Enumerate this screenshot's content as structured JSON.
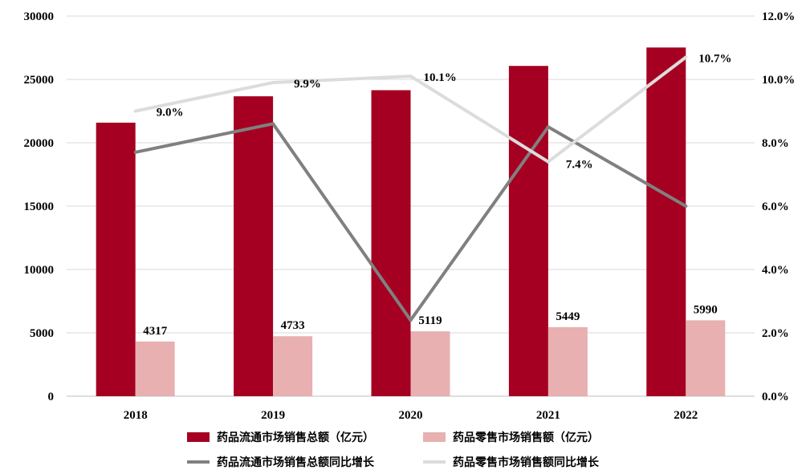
{
  "chart_data": {
    "type": "bar",
    "categories": [
      "2018",
      "2019",
      "2020",
      "2021",
      "2022"
    ],
    "bar_series": [
      {
        "name": "药品流通市场销售总额（亿元）",
        "values": [
          21586,
          23667,
          24149,
          26064,
          27516
        ],
        "color": "#a50021",
        "labels": [
          "",
          "",
          "",
          "",
          ""
        ]
      },
      {
        "name": "药品零售市场销售额（亿元）",
        "values": [
          4317,
          4733,
          5119,
          5449,
          5990
        ],
        "color": "#e8b0b0",
        "labels": [
          "4317",
          "4733",
          "5119",
          "5449",
          "5990"
        ]
      }
    ],
    "line_series": [
      {
        "name": "药品流通市场销售总额同比增长",
        "values": [
          7.7,
          8.6,
          2.4,
          8.5,
          6.0
        ],
        "color": "#808080",
        "labels": [
          "",
          "",
          "",
          "",
          ""
        ]
      },
      {
        "name": "药品零售市场销售额同比增长",
        "values": [
          9.0,
          9.9,
          10.1,
          7.4,
          10.7
        ],
        "color": "#dcdcdc",
        "labels": [
          "9.0%",
          "9.9%",
          "10.1%",
          "7.4%",
          "10.7%"
        ]
      }
    ],
    "y_left": {
      "min": 0,
      "max": 30000,
      "ticks": [
        "0",
        "5000",
        "10000",
        "15000",
        "20000",
        "25000",
        "30000"
      ]
    },
    "y_right": {
      "min": 0,
      "max": 12,
      "ticks": [
        "0.0%",
        "2.0%",
        "4.0%",
        "6.0%",
        "8.0%",
        "10.0%",
        "12.0%"
      ]
    },
    "grid": true,
    "legend_position": "bottom"
  }
}
